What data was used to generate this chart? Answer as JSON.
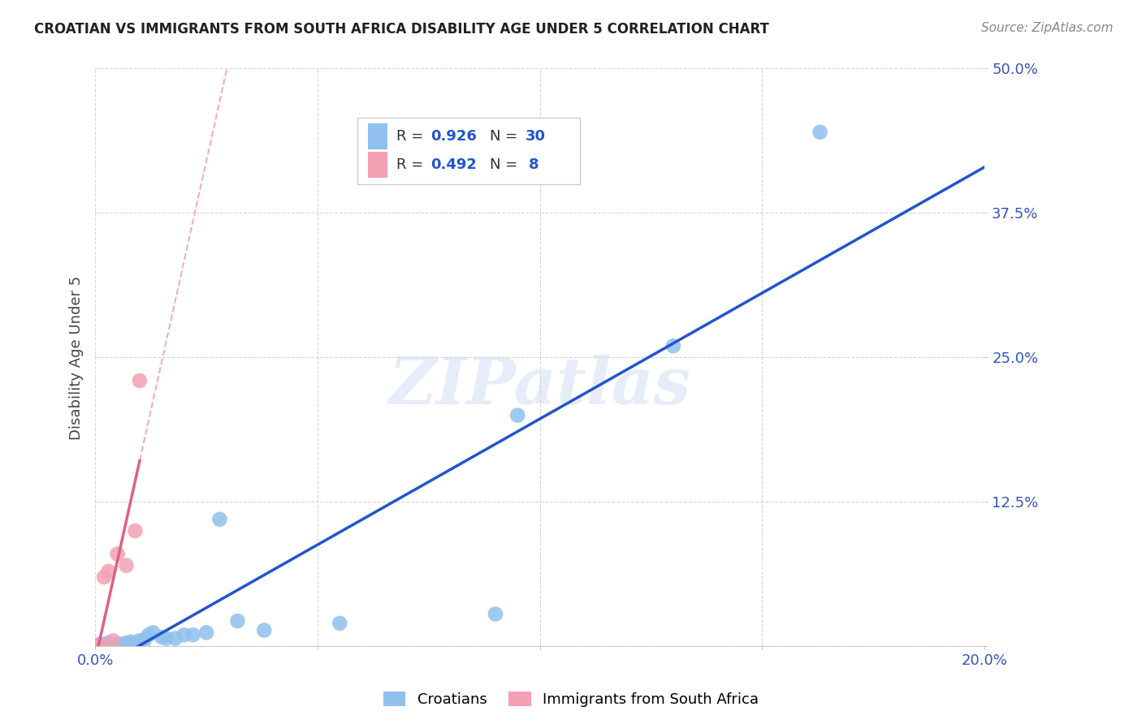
{
  "title": "CROATIAN VS IMMIGRANTS FROM SOUTH AFRICA DISABILITY AGE UNDER 5 CORRELATION CHART",
  "source": "Source: ZipAtlas.com",
  "ylabel": "Disability Age Under 5",
  "xlim": [
    0.0,
    0.2
  ],
  "ylim": [
    0.0,
    0.5
  ],
  "xticks": [
    0.0,
    0.05,
    0.1,
    0.15,
    0.2
  ],
  "yticks": [
    0.0,
    0.125,
    0.25,
    0.375,
    0.5
  ],
  "ytick_labels": [
    "",
    "12.5%",
    "25.0%",
    "37.5%",
    "50.0%"
  ],
  "xtick_labels": [
    "0.0%",
    "",
    "",
    "",
    "20.0%"
  ],
  "croatian_x": [
    0.001,
    0.001,
    0.002,
    0.002,
    0.003,
    0.003,
    0.004,
    0.005,
    0.006,
    0.007,
    0.008,
    0.009,
    0.01,
    0.011,
    0.012,
    0.013,
    0.015,
    0.016,
    0.018,
    0.02,
    0.022,
    0.025,
    0.028,
    0.032,
    0.038,
    0.055,
    0.09,
    0.095,
    0.13,
    0.163
  ],
  "croatian_y": [
    0.001,
    0.002,
    0.001,
    0.002,
    0.002,
    0.003,
    0.001,
    0.002,
    0.002,
    0.003,
    0.004,
    0.002,
    0.005,
    0.005,
    0.01,
    0.012,
    0.008,
    0.007,
    0.007,
    0.01,
    0.01,
    0.012,
    0.11,
    0.022,
    0.014,
    0.02,
    0.028,
    0.2,
    0.26,
    0.445
  ],
  "sa_x": [
    0.001,
    0.002,
    0.003,
    0.004,
    0.005,
    0.007,
    0.009,
    0.01
  ],
  "sa_y": [
    0.001,
    0.06,
    0.065,
    0.005,
    0.08,
    0.07,
    0.1,
    0.23
  ],
  "R_croatian": 0.926,
  "N_croatian": 30,
  "R_sa": 0.492,
  "N_sa": 8,
  "color_croatian": "#90C0EE",
  "color_sa": "#F4A0B5",
  "line_color_croatian": "#2255CC",
  "line_color_sa": "#E06080",
  "watermark": "ZIPatlas",
  "background_color": "#FFFFFF",
  "legend_label_1": "Croatians",
  "legend_label_2": "Immigrants from South Africa"
}
